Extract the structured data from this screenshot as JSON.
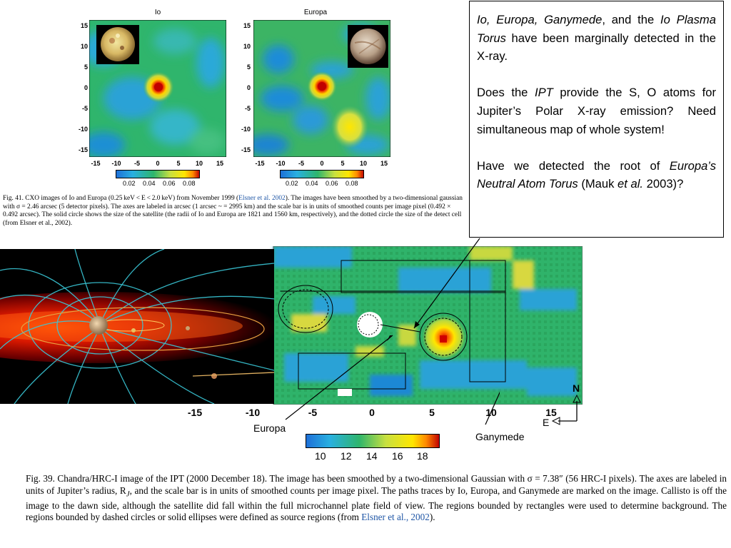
{
  "fig41": {
    "panels": [
      {
        "title": "Io"
      },
      {
        "title": "Europa"
      }
    ],
    "yticks": [
      "15",
      "10",
      "5",
      "0",
      "-5",
      "-10",
      "-15"
    ],
    "xticks": [
      "-15",
      "-10",
      "-5",
      "0",
      "5",
      "10",
      "15"
    ],
    "colorbar_ticks": [
      "0.02",
      "0.04",
      "0.06",
      "0.08"
    ],
    "caption": {
      "part1": "Fig. 41.  CXO images of Io and Europa (0.25 keV < E < 2.0 keV) from November 1999 (",
      "link": "Elsner et al. 2002",
      "part2": "). The images have been smoothed by a two-dimensional gaussian with σ = 2.46 arcsec (5 detector pixels). The axes are labeled in arcsec (1 arcsec ~ = 2995 km) and the scale bar is in units of smoothed counts per image pixel (0.492 × 0.492 arcsec). The solid circle shows the size of the satellite (the radii of Io and Europa are 1821 and 1560 km, respectively), and the dotted circle the size of the detect cell (from Elsner et al., 2002)."
    }
  },
  "note": {
    "p1_moons": "Io, Europa, Ganymede",
    "p1_and_the": ", and the ",
    "p1_torus": "Io Plasma Torus",
    "p1_rest": " have been marginally detected in the X-ray.",
    "p2_a": "Does the ",
    "p2_ipt": "IPT",
    "p2_b": " provide the S, O atoms for Jupiter’s Polar X-ray emission? Need simultaneous map of whole system!",
    "p3_a": "Have we detected the root of ",
    "p3_europa": "Europa’s Neutral Atom Torus",
    "p3_b": " (Mauk ",
    "p3_etal": "et al.",
    "p3_c": " 2003)?"
  },
  "fig39": {
    "xticks": [
      "-15",
      "-10",
      "-5",
      "0",
      "5",
      "10",
      "15"
    ],
    "labels": {
      "europa": "Europa",
      "ganymede": "Ganymede",
      "north": "N",
      "east": "E"
    },
    "colorbar_ticks": [
      "10",
      "12",
      "14",
      "16",
      "18"
    ],
    "caption": {
      "part1": "Fig. 39.  Chandra/HRC-I image of the IPT (2000 December 18). The image has been smoothed by a two-dimensional Gaussian with σ = 7.38″ (56 HRC-I pixels). The axes are labeled in units of Jupiter’s radius, R",
      "sub": "J",
      "part2": ", and the scale bar is in units of smoothed counts per image pixel. The paths traces by Io, Europa, and Ganymede are marked on the image. Callisto is off the image to the dawn side, although the satellite did fall within the full microchannel plate field of view. The regions bounded by rectangles were used to determine background. The regions bounded by dashed circles or solid ellipses were defined as source regions (from ",
      "link": "Elsner et al., 2002",
      "part3": ")."
    }
  },
  "colors": {
    "link": "#1f56a6"
  }
}
